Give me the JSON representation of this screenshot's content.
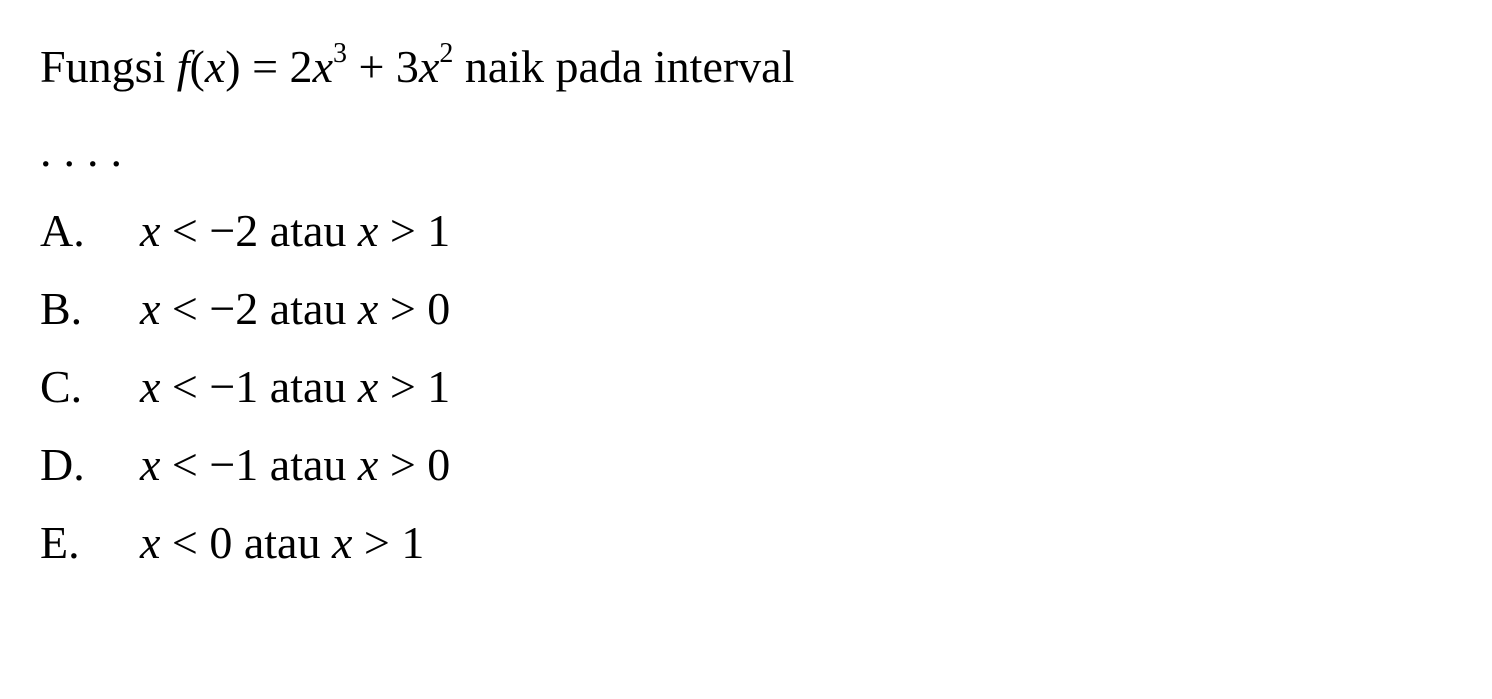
{
  "question": {
    "prefix": "Fungsi ",
    "func_name": "f",
    "func_open": "(",
    "func_var": "x",
    "func_close": ") = 2",
    "var1": "x",
    "exp1": "3",
    "plus": " + 3",
    "var2": "x",
    "exp2": "2",
    "suffix": " naik pada interval"
  },
  "dots": "....",
  "options": {
    "a": {
      "letter": "A.",
      "var1": "x",
      "rel1": " < −2 atau ",
      "var2": "x",
      "rel2": " > 1"
    },
    "b": {
      "letter": "B.",
      "var1": "x",
      "rel1": " < −2 atau ",
      "var2": "x",
      "rel2": " > 0"
    },
    "c": {
      "letter": "C.",
      "var1": "x",
      "rel1": " < −1 atau ",
      "var2": "x",
      "rel2": " > 1"
    },
    "d": {
      "letter": "D.",
      "var1": "x",
      "rel1": " < −1 atau ",
      "var2": "x",
      "rel2": " > 0"
    },
    "e": {
      "letter": "E.",
      "var1": "x",
      "rel1": " < 0 atau ",
      "var2": "x",
      "rel2": " > 1"
    }
  },
  "styling": {
    "background_color": "#ffffff",
    "text_color": "#000000",
    "font_family": "Times New Roman",
    "base_fontsize": 46,
    "sup_fontsize": 28,
    "line_height": 1.7
  }
}
